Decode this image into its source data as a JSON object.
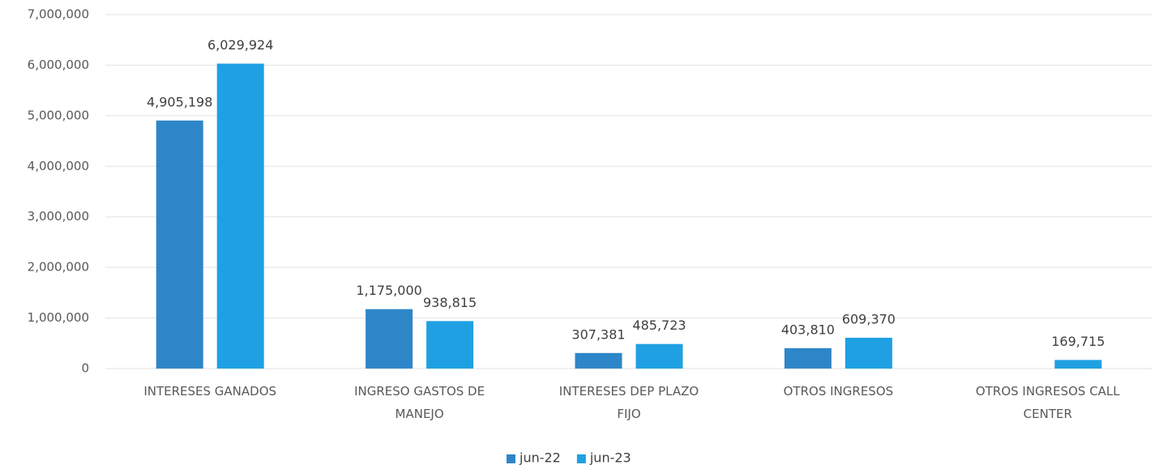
{
  "chart_data": {
    "type": "bar",
    "categories": [
      "INTERESES GANADOS",
      "INGRESO GASTOS DE MANEJO",
      "INTERESES DEP PLAZO FIJO",
      "OTROS INGRESOS",
      "OTROS INGRESOS CALL CENTER"
    ],
    "series": [
      {
        "name": "jun-22",
        "color": "#2e86c8",
        "values": [
          4905198,
          1175000,
          307381,
          403810,
          null
        ],
        "value_labels": [
          "4,905,198",
          "1,175,000",
          "307,381",
          "403,810",
          null
        ]
      },
      {
        "name": "jun-23",
        "color": "#1fa0e3",
        "values": [
          6029924,
          938815,
          485723,
          609370,
          169715
        ],
        "value_labels": [
          "6,029,924",
          "938,815",
          "485,723",
          "609,370",
          "169,715"
        ]
      }
    ],
    "ylim": [
      0,
      7000000
    ],
    "yticks": [
      0,
      {
        "value": 1000000,
        "label": "1,000,000"
      },
      {
        "value": 2000000,
        "label": "2,000,000"
      },
      {
        "value": 3000000,
        "label": "3,000,000"
      },
      {
        "value": 4000000,
        "label": "4,000,000"
      },
      {
        "value": 5000000,
        "label": "5,000,000"
      },
      {
        "value": 6000000,
        "label": "6,000,000"
      },
      {
        "value": 7000000,
        "label": "7,000,000"
      }
    ],
    "grid": true,
    "legend": "bottom"
  }
}
